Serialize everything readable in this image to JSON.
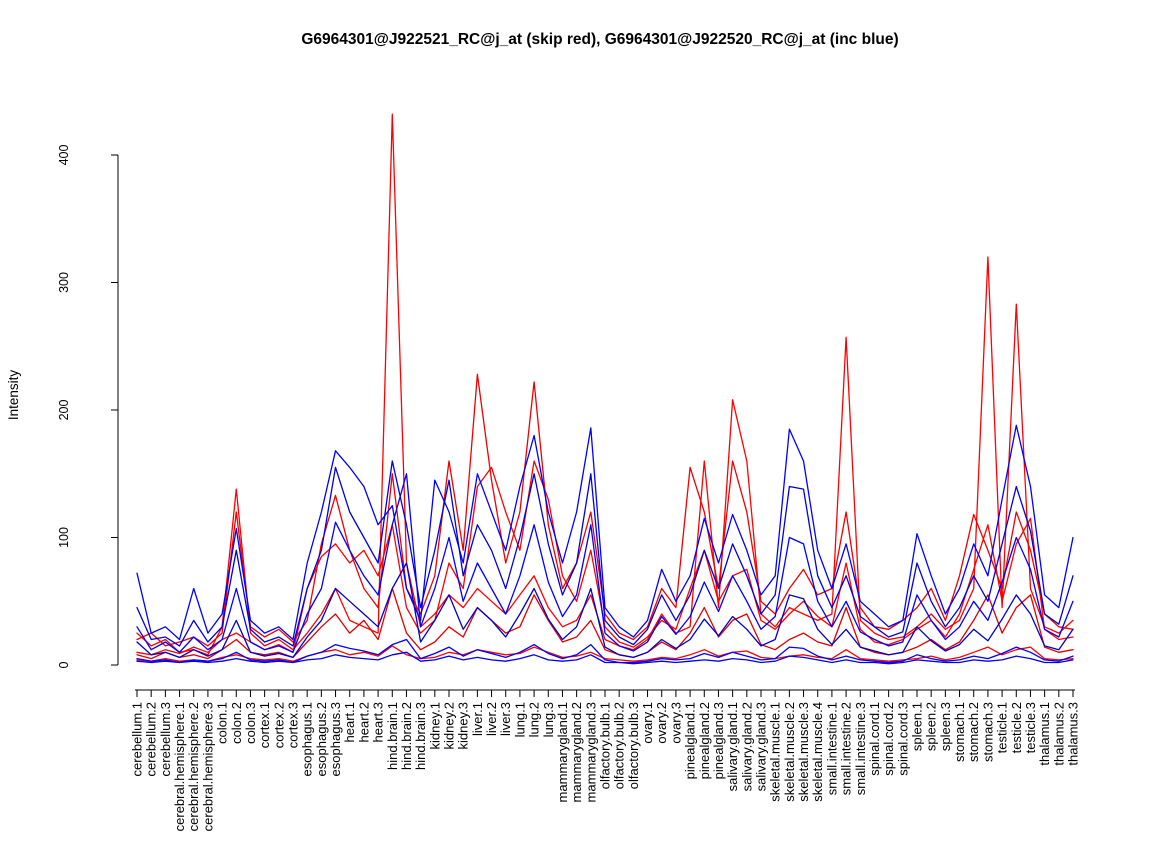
{
  "chart_data": {
    "type": "line",
    "title": "G6964301@J922521_RC@j_at (skip red), G6964301@J922520_RC@j_at (inc blue)",
    "xlabel": "",
    "ylabel": "Intensity",
    "ylim": [
      0,
      440
    ],
    "yticks": [
      0,
      100,
      200,
      300,
      400
    ],
    "grid": false,
    "legend_position": "none",
    "legend_note": "red = skip series (J922521), blue = inc series (J922520)",
    "colors": {
      "skip": "#ff0000",
      "inc": "#0000ff"
    },
    "categories": [
      "cerebellum.1",
      "cerebellum.2",
      "cerebellum.3",
      "cerebral.hemisphere.1",
      "cerebral.hemisphere.2",
      "cerebral.hemisphere.3",
      "colon.1",
      "colon.2",
      "colon.3",
      "cortex.1",
      "cortex.2",
      "cortex.3",
      "esophagus.1",
      "esophagus.2",
      "esophagus.3",
      "heart.1",
      "heart.2",
      "heart.3",
      "hind.brain.1",
      "hind.brain.2",
      "hind.brain.3",
      "kidney.1",
      "kidney.2",
      "kidney.3",
      "liver.1",
      "liver.2",
      "liver.3",
      "lung.1",
      "lung.2",
      "lung.3",
      "mammarygland.1",
      "mammarygland.2",
      "mammarygland.3",
      "olfactory.bulb.1",
      "olfactory.bulb.2",
      "olfactory.bulb.3",
      "ovary.1",
      "ovary.2",
      "ovary.3",
      "pinealgland.1",
      "pinealgland.2",
      "pinealgland.3",
      "salivary.gland.1",
      "salivary.gland.2",
      "salivary.gland.3",
      "skeletal.muscle.1",
      "skeletal.muscle.2",
      "skeletal.muscle.3",
      "skeletal.muscle.4",
      "small.intestine.1",
      "small.intestine.2",
      "small.intestine.3",
      "spinal.cord.1",
      "spinal.cord.2",
      "spinal.cord.3",
      "spleen.1",
      "spleen.2",
      "spleen.3",
      "stomach.1",
      "stomach.2",
      "stomach.3",
      "testicle.1",
      "testicle.2",
      "testicle.3",
      "thalamus.1",
      "thalamus.2",
      "thalamus.3"
    ],
    "series": [
      {
        "name": "skip-red-1",
        "color": "#ff0000",
        "values": [
          25,
          15,
          20,
          10,
          12,
          8,
          30,
          138,
          25,
          15,
          20,
          12,
          25,
          40,
          60,
          35,
          30,
          25,
          432,
          80,
          30,
          40,
          55,
          45,
          60,
          50,
          40,
          55,
          70,
          45,
          30,
          35,
          55,
          20,
          15,
          12,
          20,
          40,
          25,
          30,
          160,
          45,
          208,
          160,
          40,
          30,
          45,
          40,
          35,
          40,
          257,
          35,
          25,
          20,
          22,
          30,
          40,
          28,
          35,
          60,
          320,
          45,
          283,
          60,
          30,
          25,
          35
        ]
      },
      {
        "name": "skip-red-2",
        "color": "#ee0000",
        "values": [
          20,
          25,
          15,
          18,
          22,
          15,
          25,
          120,
          30,
          22,
          28,
          18,
          35,
          95,
          133,
          90,
          60,
          45,
          150,
          60,
          40,
          70,
          160,
          90,
          228,
          145,
          80,
          120,
          222,
          110,
          60,
          80,
          120,
          40,
          25,
          20,
          30,
          60,
          45,
          155,
          120,
          60,
          160,
          120,
          50,
          40,
          60,
          75,
          55,
          60,
          120,
          45,
          30,
          28,
          35,
          45,
          60,
          35,
          70,
          118,
          90,
          60,
          120,
          90,
          40,
          30,
          28
        ]
      },
      {
        "name": "skip-red-3",
        "color": "#ff0000",
        "values": [
          10,
          8,
          12,
          9,
          14,
          10,
          20,
          25,
          18,
          12,
          16,
          10,
          60,
          85,
          95,
          80,
          90,
          70,
          110,
          45,
          25,
          35,
          80,
          60,
          140,
          155,
          120,
          90,
          160,
          130,
          70,
          50,
          90,
          30,
          18,
          14,
          22,
          35,
          28,
          60,
          90,
          50,
          70,
          75,
          35,
          28,
          40,
          50,
          38,
          30,
          80,
          28,
          18,
          16,
          20,
          28,
          35,
          22,
          40,
          75,
          110,
          50,
          95,
          115,
          28,
          20,
          22
        ]
      },
      {
        "name": "skip-red-4",
        "color": "#e00000",
        "values": [
          8,
          5,
          10,
          6,
          8,
          5,
          12,
          20,
          10,
          8,
          10,
          6,
          18,
          30,
          40,
          25,
          35,
          20,
          60,
          25,
          12,
          18,
          30,
          22,
          45,
          35,
          25,
          30,
          55,
          35,
          18,
          22,
          35,
          12,
          8,
          6,
          10,
          18,
          12,
          25,
          45,
          22,
          35,
          40,
          16,
          12,
          20,
          25,
          18,
          15,
          45,
          14,
          10,
          8,
          10,
          14,
          20,
          12,
          18,
          35,
          55,
          25,
          45,
          55,
          14,
          10,
          12
        ]
      },
      {
        "name": "skip-red-5",
        "color": "#ff0000",
        "values": [
          4,
          3,
          5,
          3,
          4,
          3,
          6,
          8,
          5,
          4,
          5,
          3,
          7,
          10,
          12,
          8,
          10,
          7,
          15,
          8,
          5,
          6,
          10,
          8,
          12,
          10,
          8,
          9,
          14,
          10,
          6,
          7,
          10,
          5,
          4,
          3,
          4,
          6,
          5,
          8,
          12,
          7,
          10,
          11,
          6,
          5,
          7,
          8,
          6,
          5,
          12,
          5,
          4,
          3,
          4,
          5,
          7,
          4,
          6,
          10,
          14,
          8,
          12,
          14,
          5,
          4,
          5
        ]
      },
      {
        "name": "inc-blue-1",
        "color": "#0000ff",
        "values": [
          72,
          25,
          30,
          20,
          60,
          25,
          40,
          107,
          35,
          25,
          30,
          20,
          80,
          120,
          168,
          155,
          140,
          110,
          125,
          60,
          35,
          145,
          120,
          80,
          150,
          120,
          90,
          140,
          180,
          120,
          80,
          120,
          186,
          45,
          30,
          22,
          35,
          75,
          50,
          70,
          115,
          80,
          118,
          90,
          55,
          70,
          185,
          160,
          90,
          60,
          95,
          50,
          40,
          30,
          35,
          103,
          70,
          40,
          60,
          95,
          70,
          130,
          188,
          140,
          55,
          45,
          100
        ]
      },
      {
        "name": "inc-blue-2",
        "color": "#0000dd",
        "values": [
          45,
          20,
          22,
          15,
          35,
          18,
          30,
          90,
          28,
          18,
          22,
          15,
          60,
          90,
          155,
          120,
          100,
          80,
          160,
          110,
          45,
          90,
          145,
          70,
          110,
          90,
          60,
          100,
          150,
          95,
          55,
          80,
          150,
          35,
          22,
          16,
          28,
          55,
          35,
          55,
          90,
          60,
          95,
          70,
          40,
          55,
          140,
          138,
          70,
          45,
          70,
          38,
          30,
          22,
          26,
          80,
          50,
          30,
          45,
          70,
          50,
          95,
          140,
          105,
          40,
          32,
          70
        ]
      },
      {
        "name": "inc-blue-3",
        "color": "#0000ff",
        "values": [
          30,
          12,
          18,
          10,
          22,
          12,
          20,
          60,
          18,
          12,
          15,
          10,
          40,
          60,
          112,
          90,
          70,
          55,
          110,
          150,
          30,
          60,
          100,
          50,
          80,
          60,
          40,
          70,
          110,
          65,
          38,
          55,
          110,
          25,
          15,
          11,
          18,
          38,
          24,
          38,
          65,
          42,
          70,
          50,
          28,
          38,
          100,
          95,
          50,
          30,
          50,
          26,
          20,
          15,
          18,
          55,
          35,
          20,
          30,
          50,
          35,
          65,
          100,
          75,
          28,
          22,
          50
        ]
      },
      {
        "name": "inc-blue-4",
        "color": "#0000cc",
        "values": [
          18,
          8,
          10,
          6,
          12,
          7,
          12,
          35,
          10,
          7,
          9,
          6,
          22,
          35,
          60,
          50,
          40,
          30,
          60,
          80,
          18,
          35,
          55,
          28,
          45,
          35,
          22,
          40,
          60,
          36,
          20,
          30,
          60,
          14,
          8,
          6,
          10,
          20,
          13,
          20,
          36,
          23,
          38,
          28,
          15,
          20,
          55,
          52,
          28,
          16,
          28,
          14,
          11,
          8,
          10,
          30,
          19,
          11,
          16,
          28,
          19,
          36,
          55,
          40,
          15,
          12,
          28
        ]
      },
      {
        "name": "inc-blue-5",
        "color": "#0000ff",
        "values": [
          5,
          3,
          4,
          2,
          4,
          3,
          5,
          10,
          4,
          3,
          4,
          2,
          7,
          10,
          16,
          13,
          11,
          8,
          16,
          20,
          5,
          9,
          14,
          7,
          12,
          9,
          6,
          10,
          16,
          9,
          5,
          8,
          16,
          4,
          2,
          2,
          3,
          5,
          4,
          5,
          9,
          6,
          10,
          7,
          4,
          5,
          14,
          13,
          7,
          4,
          7,
          4,
          3,
          2,
          3,
          8,
          5,
          3,
          4,
          7,
          5,
          9,
          14,
          10,
          4,
          3,
          7
        ]
      },
      {
        "name": "inc-blue-6",
        "color": "#0000ee",
        "values": [
          3,
          2,
          3,
          2,
          3,
          2,
          3,
          5,
          3,
          2,
          3,
          2,
          4,
          5,
          8,
          6,
          5,
          4,
          8,
          10,
          3,
          4,
          7,
          4,
          6,
          4,
          3,
          5,
          8,
          4,
          3,
          4,
          8,
          2,
          2,
          1,
          2,
          3,
          2,
          3,
          4,
          3,
          5,
          4,
          2,
          3,
          7,
          6,
          4,
          2,
          4,
          2,
          2,
          1,
          2,
          4,
          3,
          2,
          2,
          4,
          3,
          4,
          7,
          5,
          2,
          2,
          4
        ]
      }
    ]
  }
}
